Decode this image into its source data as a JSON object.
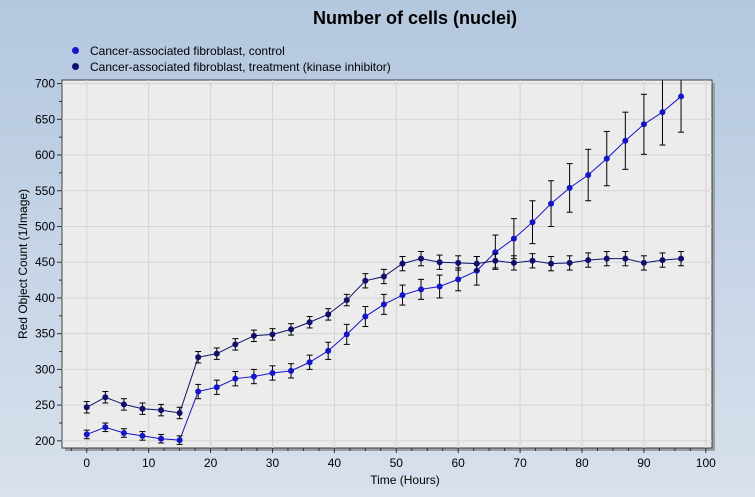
{
  "chart_data": {
    "type": "line",
    "title": "Number of cells (nuclei)",
    "xlabel": "Time (Hours)",
    "ylabel": "Red Object Count (1/Image)",
    "xlim": [
      -4,
      101
    ],
    "ylim": [
      190,
      705
    ],
    "xticks": [
      0,
      10,
      20,
      30,
      40,
      50,
      60,
      70,
      80,
      90,
      100
    ],
    "yticks": [
      200,
      250,
      300,
      350,
      400,
      450,
      500,
      550,
      600,
      650,
      700
    ],
    "legend_position": "top-left",
    "series": [
      {
        "name": "Cancer-associated fibroblast, control",
        "color": "#1414c8",
        "x": [
          0,
          3,
          6,
          9,
          12,
          15,
          18,
          21,
          24,
          27,
          30,
          33,
          36,
          39,
          42,
          45,
          48,
          51,
          54,
          57,
          60,
          63,
          66,
          69,
          72,
          75,
          78,
          81,
          84,
          87,
          90,
          93,
          96
        ],
        "y": [
          209,
          219,
          211,
          207,
          203,
          201,
          269,
          275,
          287,
          290,
          295,
          298,
          310,
          326,
          349,
          374,
          391,
          404,
          412,
          416,
          426,
          438,
          464,
          483,
          506,
          532,
          554,
          572,
          595,
          620,
          643,
          660,
          682
        ],
        "err": [
          6,
          6,
          6,
          6,
          6,
          6,
          10,
          10,
          10,
          10,
          10,
          10,
          10,
          12,
          14,
          14,
          14,
          14,
          14,
          16,
          16,
          20,
          24,
          28,
          30,
          32,
          34,
          36,
          38,
          40,
          42,
          46,
          50
        ]
      },
      {
        "name": "Cancer-associated fibroblast, treatment (kinase inhibitor)",
        "color": "#10106a",
        "x": [
          0,
          3,
          6,
          9,
          12,
          15,
          18,
          21,
          24,
          27,
          30,
          33,
          36,
          39,
          42,
          45,
          48,
          51,
          54,
          57,
          60,
          63,
          66,
          69,
          72,
          75,
          78,
          81,
          84,
          87,
          90,
          93,
          96
        ],
        "y": [
          247,
          261,
          251,
          245,
          243,
          239,
          317,
          322,
          335,
          347,
          349,
          356,
          366,
          377,
          397,
          424,
          430,
          448,
          455,
          450,
          449,
          448,
          452,
          449,
          452,
          448,
          449,
          453,
          455,
          455,
          449,
          453,
          455
        ],
        "err": [
          8,
          8,
          8,
          8,
          8,
          8,
          8,
          8,
          8,
          8,
          8,
          8,
          8,
          8,
          8,
          10,
          10,
          10,
          10,
          10,
          10,
          10,
          10,
          10,
          10,
          10,
          10,
          10,
          10,
          10,
          10,
          10,
          10
        ]
      }
    ]
  }
}
